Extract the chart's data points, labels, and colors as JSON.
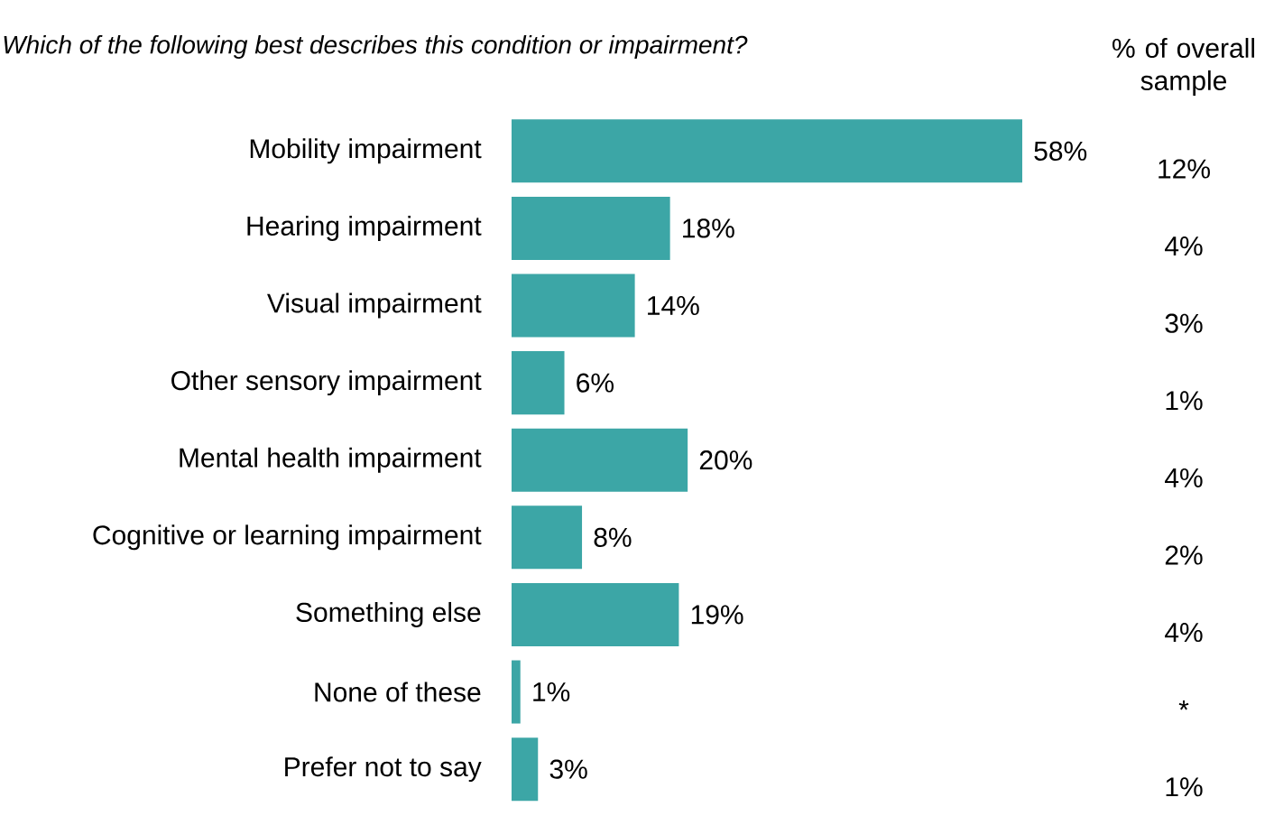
{
  "chart_data": {
    "type": "bar",
    "orientation": "horizontal",
    "title": "Which of the following best describes this condition or impairment?",
    "categories": [
      "Mobility impairment",
      "Hearing impairment",
      "Visual impairment",
      "Other sensory impairment",
      "Mental health impairment",
      "Cognitive or learning impairment",
      "Something else",
      "None of these",
      "Prefer not to say"
    ],
    "values": [
      58,
      18,
      14,
      6,
      20,
      8,
      19,
      1,
      3
    ],
    "value_labels": [
      "58%",
      "18%",
      "14%",
      "6%",
      "20%",
      "8%",
      "19%",
      "1%",
      "3%"
    ],
    "color": "#3ca6a6",
    "annotations": [
      "% of overall sample",
      "12%",
      "4%",
      "3%",
      "1%",
      "4%",
      "2%",
      "4%",
      "*",
      "1%"
    ]
  }
}
